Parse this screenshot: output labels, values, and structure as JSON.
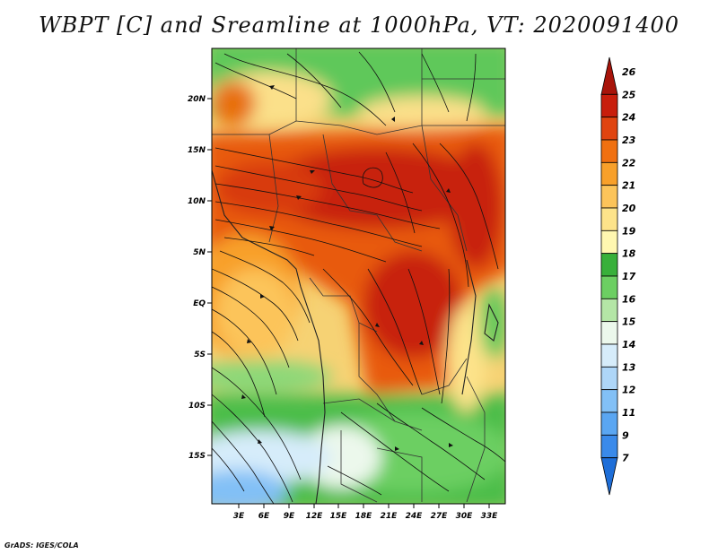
{
  "title": "WBPT [C] and Sreamline at 1000hPa, VT: 2020091400",
  "credit": "GrADS: IGES/COLA",
  "map": {
    "lat_ticks": [
      "20N",
      "15N",
      "10N",
      "5N",
      "EQ",
      "5S",
      "10S",
      "15S"
    ],
    "lon_ticks": [
      "3E",
      "6E",
      "9E",
      "12E",
      "15E",
      "18E",
      "21E",
      "24E",
      "27E",
      "30E",
      "33E"
    ]
  },
  "colorbar": {
    "labels": [
      "7",
      "9",
      "11",
      "12",
      "13",
      "14",
      "15",
      "16",
      "17",
      "18",
      "19",
      "20",
      "21",
      "22",
      "23",
      "24",
      "25",
      "26"
    ],
    "colors": [
      "#1e6ed8",
      "#3a8aea",
      "#5aa6f2",
      "#82c0f6",
      "#aed6f8",
      "#d6ecfa",
      "#ecf8ec",
      "#b4e6a6",
      "#6ccf62",
      "#38b03a",
      "#fff7b0",
      "#fde38a",
      "#fcc45a",
      "#f8a02a",
      "#f07010",
      "#e04410",
      "#c81e0c",
      "#a8140a"
    ]
  }
}
